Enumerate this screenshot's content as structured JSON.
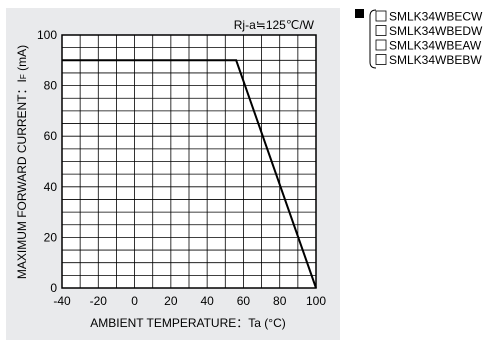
{
  "colors": {
    "panel_bg": "#e9eaec",
    "plot_bg": "#ffffff",
    "grid": "#000000",
    "line": "#000000",
    "marker": "#000000"
  },
  "chart_data": {
    "type": "line",
    "title": "",
    "annotation": "Rj-a≒125℃/W",
    "xlabel": "AMBIENT TEMPERATURE：Ta  (°C)",
    "ylabel": "MAXIMUM FORWARD CURRENT：I",
    "ylabel_sub": "F",
    "ylabel_unit": " (mA)",
    "xlim": [
      -40,
      100
    ],
    "ylim": [
      0,
      100
    ],
    "xticks": [
      -40,
      -20,
      0,
      20,
      40,
      60,
      80,
      100
    ],
    "yticks": [
      0,
      20,
      40,
      60,
      80,
      100
    ],
    "x_minor_step": 10,
    "y_minor_step": 5,
    "grid": true,
    "series": [
      {
        "x": [
          -40,
          56,
          100
        ],
        "y": [
          90,
          90,
          0
        ]
      }
    ],
    "legend": {
      "placement": "top-right",
      "entries": [
        "SMLK34WBECW",
        "SMLK34WBEDW",
        "SMLK34WBEAW",
        "SMLK34WBEBW"
      ]
    }
  }
}
